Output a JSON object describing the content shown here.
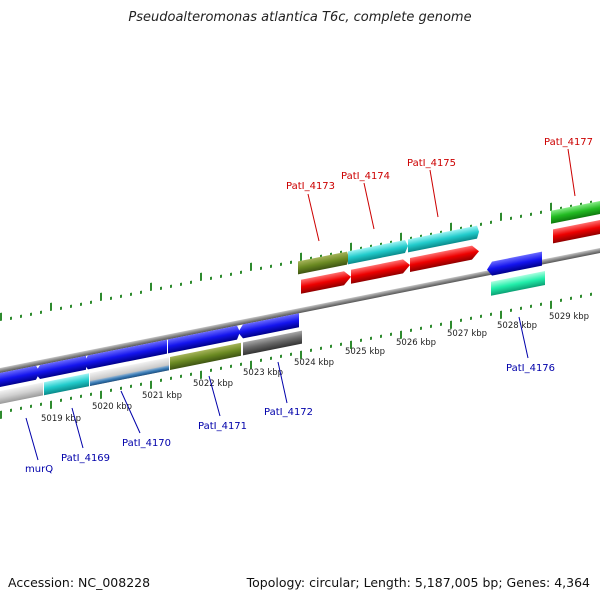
{
  "title": "Pseudoalteromonas atlantica T6c, complete genome",
  "footer": {
    "accession": "Accession: NC_008228",
    "stats": "Topology: circular; Length: 5,187,005 bp; Genes: 4,364"
  },
  "colors": {
    "label_red": "#cc0000",
    "label_blue": "#0000aa",
    "tick": "#2e8b2e",
    "backbone": "#8c8c8c"
  },
  "kbp_labels": [
    "5019 kbp",
    "5020 kbp",
    "5021 kbp",
    "5022 kbp",
    "5023 kbp",
    "5024 kbp",
    "5025 kbp",
    "5026 kbp",
    "5027 kbp",
    "5028 kbp",
    "5029 kbp"
  ],
  "top_labels": [
    "PatI_4173",
    "PatI_4174",
    "PatI_4175",
    "PatI_4177"
  ],
  "bottom_labels": [
    "murQ",
    "PatI_4169",
    "PatI_4170",
    "PatI_4171",
    "PatI_4172",
    "PatI_4176"
  ]
}
